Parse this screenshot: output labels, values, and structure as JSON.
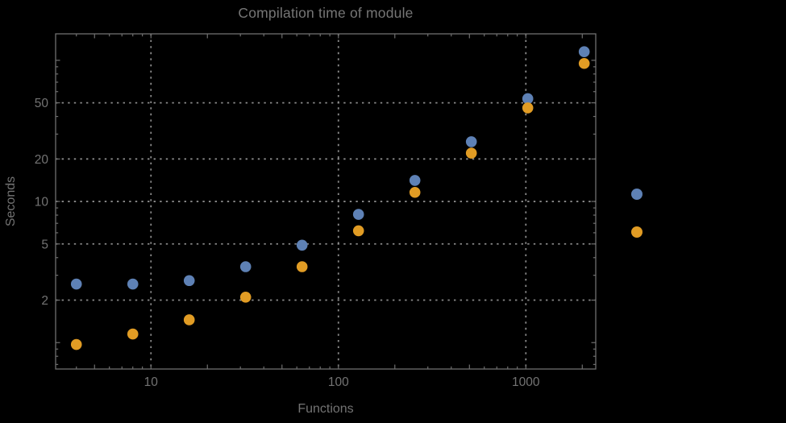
{
  "colors": {
    "background": "#000000",
    "frame": "#6f6f6f",
    "grid": "#8a8a8a",
    "text": "#737373",
    "series1": "#5E81B5",
    "series2": "#E19C24"
  },
  "chart_data": {
    "type": "scatter",
    "title": "Compilation time of module",
    "xlabel": "Functions",
    "ylabel": "Seconds",
    "x_scale": "log",
    "y_scale": "log",
    "xlim": [
      3.1,
      2360
    ],
    "ylim": [
      0.65,
      154
    ],
    "grid": "dotted lines at labeled ticks",
    "legend_position": "right-outside",
    "x_ticks": {
      "values": [
        10,
        100,
        1000
      ],
      "labels": [
        "10",
        "100",
        "1000"
      ]
    },
    "y_ticks": {
      "values": [
        2,
        5,
        10,
        20,
        50
      ],
      "labels": [
        "2",
        "5",
        "10",
        "20",
        "50"
      ]
    },
    "x": [
      4,
      8,
      16,
      32,
      64,
      128,
      256,
      512,
      1024,
      2048
    ],
    "series": [
      {
        "name": "series-1-blue",
        "color": "#5E81B5",
        "values": [
          2.6,
          2.6,
          2.75,
          3.45,
          4.9,
          8.1,
          14.1,
          26.5,
          53.5,
          115
        ]
      },
      {
        "name": "series-2-orange",
        "color": "#E19C24",
        "values": [
          0.97,
          1.15,
          1.45,
          2.1,
          3.45,
          6.2,
          11.6,
          22,
          46,
          95
        ]
      }
    ],
    "legend": {
      "entries": [
        {
          "series": "series-1-blue",
          "color": "#5E81B5",
          "label": ""
        },
        {
          "series": "series-2-orange",
          "color": "#E19C24",
          "label": ""
        }
      ]
    }
  }
}
